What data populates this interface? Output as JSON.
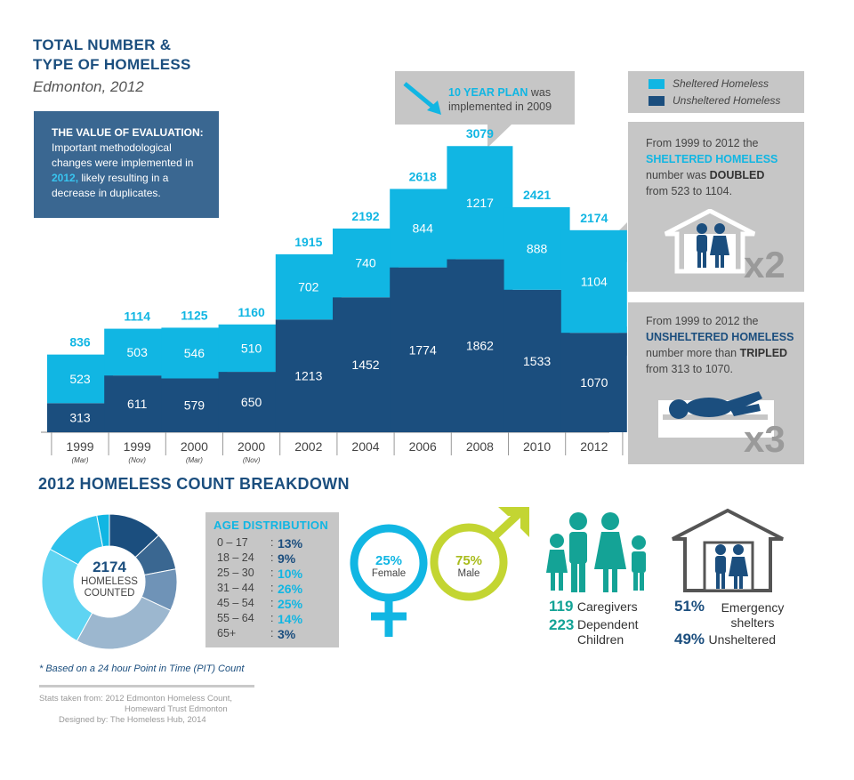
{
  "header": {
    "title_line1": "TOTAL NUMBER &",
    "title_line2": "TYPE OF HOMELESS",
    "subtitle": "Edmonton, 2012"
  },
  "evaluation_note": {
    "heading": "THE VALUE OF EVALUATION:",
    "text_before": "Important methodological changes were implemented in ",
    "year": "2012,",
    "text_after": " likely resulting in a decrease in duplicates."
  },
  "plan_callout": {
    "highlight": "10 YEAR PLAN",
    "text1": " was",
    "text2": "implemented in 2009"
  },
  "legend": {
    "sheltered": "Sheltered Homeless",
    "unsheltered": "Unsheltered Homeless"
  },
  "colors": {
    "sheltered": "#11b6e3",
    "unsheltered": "#1b4e7e",
    "grey_box": "#c6c6c6"
  },
  "chart_data": {
    "type": "bar",
    "stacked": true,
    "categories": [
      "1999 (Mar)",
      "1999 (Nov)",
      "2000 (Mar)",
      "2000 (Nov)",
      "2002",
      "2004",
      "2006",
      "2008",
      "2010",
      "2012"
    ],
    "x_labels": [
      "1999",
      "1999",
      "2000",
      "2000",
      "2002",
      "2004",
      "2006",
      "2008",
      "2010",
      "2012"
    ],
    "x_sublabels": [
      "(Mar)",
      "(Nov)",
      "(Mar)",
      "(Nov)",
      "",
      "",
      "",
      "",
      "",
      ""
    ],
    "series": [
      {
        "name": "Unsheltered Homeless",
        "values": [
          313,
          611,
          579,
          650,
          1213,
          1452,
          1774,
          1862,
          1533,
          1070
        ]
      },
      {
        "name": "Sheltered Homeless",
        "values": [
          523,
          503,
          546,
          510,
          702,
          740,
          844,
          1217,
          888,
          1104
        ]
      }
    ],
    "totals": [
      836,
      1114,
      1125,
      1160,
      1915,
      2192,
      2618,
      3079,
      2421,
      2174
    ],
    "ylim": [
      0,
      3100
    ]
  },
  "sheltered_callout": {
    "line1": "From 1999 to 2012 the",
    "highlight": "SHELTERED HOMELESS",
    "line3a": "number was ",
    "line3b": "DOUBLED",
    "line4": "from 523 to 1104.",
    "multiplier": "x2"
  },
  "unsheltered_callout": {
    "line1": "From 1999 to 2012 the",
    "highlight": "UNSHELTERED HOMELESS",
    "line3a": "number more than ",
    "line3b": "TRIPLED",
    "line4": "from 313 to 1070.",
    "multiplier": "x3"
  },
  "breakdown": {
    "title": "2012 HOMELESS COUNT BREAKDOWN",
    "donut_total": "2174",
    "donut_label1": "HOMELESS",
    "donut_label2": "COUNTED",
    "donut_segments": [
      13,
      9,
      10,
      26,
      25,
      14,
      3
    ],
    "donut_colors": [
      "#1b4e7e",
      "#3a6791",
      "#6f93b7",
      "#9cb7cf",
      "#5fd4f2",
      "#2ec1eb",
      "#11b6e3"
    ],
    "age_heading": "AGE DISTRIBUTION",
    "age_rows": [
      {
        "range": "0  –  17",
        "pct": "13%"
      },
      {
        "range": "18  –  24",
        "pct": "9%"
      },
      {
        "range": "25  –  30",
        "pct": "10%"
      },
      {
        "range": "31  –  44",
        "pct": "26%"
      },
      {
        "range": "45  –  54",
        "pct": "25%"
      },
      {
        "range": "55  –  64",
        "pct": "14%"
      },
      {
        "range": "65+",
        "pct": "3%"
      }
    ],
    "female_pct": "25%",
    "female_label": "Female",
    "male_pct": "75%",
    "male_label": "Male",
    "caregivers_num": "119",
    "caregivers_label": "Caregivers",
    "children_num": "223",
    "children_label1": "Dependent",
    "children_label2": "Children",
    "shelters_pct": "51%",
    "shelters_label1": "Emergency",
    "shelters_label2": "shelters",
    "unsheltered_pct": "49%",
    "unsheltered_label": "Unsheltered"
  },
  "footer": {
    "pit_note": "* Based on a 24 hour Point in Time (PIT) Count",
    "source1": "Stats taken from: 2012 Edmonton Homeless Count,",
    "source2": "Homeward Trust Edmonton",
    "designed": "Designed by: The Homeless Hub, 2014"
  }
}
